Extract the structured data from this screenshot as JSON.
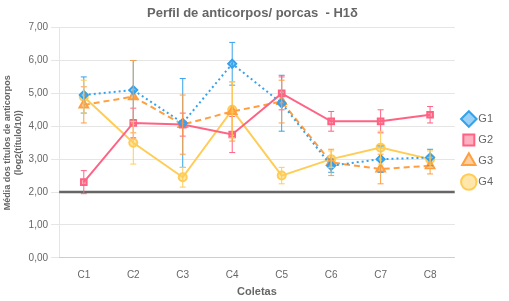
{
  "chart_data": {
    "type": "line",
    "title": "Perfil de anticorpos/ porcas  - H1δ",
    "x_label": "Coletas",
    "y_label": "Média dos títulos de anticorpos\n(log2(título/10))",
    "categories": [
      "C1",
      "C2",
      "C3",
      "C4",
      "C5",
      "C6",
      "C7",
      "C8"
    ],
    "series": [
      {
        "name": "G1",
        "values": [
          4.95,
          5.1,
          4.1,
          5.9,
          4.7,
          2.8,
          3.0,
          3.05
        ],
        "yerr": [
          0.55,
          0.9,
          1.35,
          0.65,
          0.85,
          0.2,
          0.4,
          0.25
        ],
        "line_style": "dotted",
        "marker": "diamond"
      },
      {
        "name": "G2",
        "values": [
          2.3,
          4.1,
          4.05,
          3.75,
          5.0,
          4.15,
          4.15,
          4.35
        ],
        "yerr": [
          0.35,
          0.45,
          0.35,
          0.55,
          0.5,
          0.3,
          0.35,
          0.25
        ],
        "line_style": "solid",
        "marker": "square"
      },
      {
        "name": "G3",
        "values": [
          4.65,
          4.9,
          4.05,
          4.45,
          4.75,
          2.9,
          2.7,
          2.8
        ],
        "yerr": [
          0.55,
          1.1,
          0.9,
          0.9,
          0.65,
          0.4,
          0.45,
          0.25
        ],
        "line_style": "dashed",
        "marker": "triangle"
      },
      {
        "name": "G4",
        "values": [
          4.9,
          3.5,
          2.45,
          4.5,
          2.5,
          3.0,
          3.35,
          3.0
        ],
        "yerr": [
          0.5,
          0.65,
          0.3,
          0.85,
          0.25,
          0.25,
          0.5,
          0.25
        ],
        "line_style": "solid",
        "marker": "circle"
      }
    ],
    "threshold": 2.0,
    "ylim": [
      0.0,
      7.0
    ],
    "yticks": [
      {
        "value": 0.0,
        "label": "0,00"
      },
      {
        "value": 1.0,
        "label": "1,00"
      },
      {
        "value": 2.0,
        "label": "2,00"
      },
      {
        "value": 3.0,
        "label": "3,00"
      },
      {
        "value": 4.0,
        "label": "4,00"
      },
      {
        "value": 5.0,
        "label": "5,00"
      },
      {
        "value": 6.0,
        "label": "6,00"
      },
      {
        "value": 7.0,
        "label": "7,00"
      }
    ],
    "grid": "y",
    "legend": "right"
  }
}
